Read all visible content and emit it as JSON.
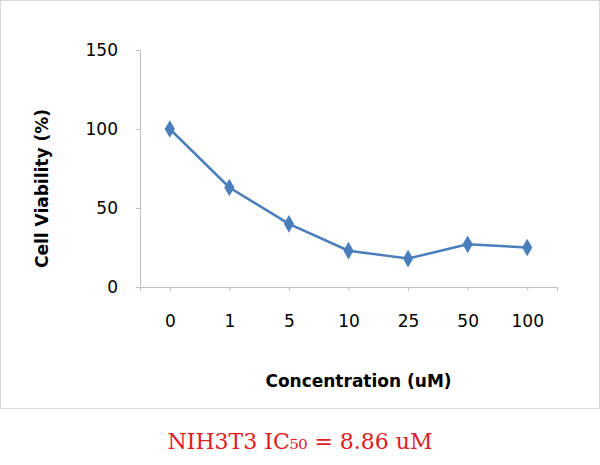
{
  "chart_data": {
    "type": "line",
    "title": "NIH3T3 IC₅₀ = 8.86 uM",
    "x_label": "Concentration (uM)",
    "y_label": "Cell Viability (%)",
    "categories": [
      "0",
      "1",
      "5",
      "10",
      "25",
      "50",
      "100"
    ],
    "values": [
      100,
      63,
      40,
      23,
      18,
      27,
      25
    ],
    "color": "#4a7ebb",
    "marker": "diamond",
    "ylim": [
      0,
      150
    ],
    "yticks": [
      0,
      50,
      100,
      150
    ],
    "grid": false
  }
}
